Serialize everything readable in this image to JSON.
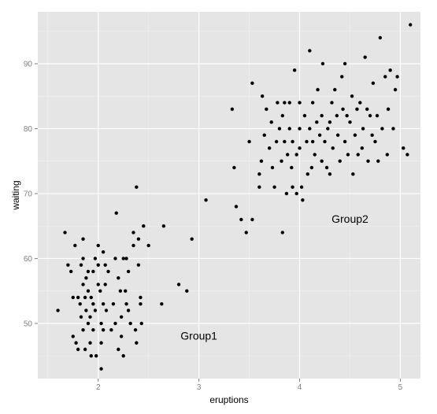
{
  "chart_data": {
    "type": "scatter",
    "xlabel": "eruptions",
    "ylabel": "waiting",
    "xlim": [
      1.4,
      5.2
    ],
    "ylim": [
      41.5,
      98
    ],
    "x_ticks": [
      2,
      3,
      4,
      5
    ],
    "y_ticks": [
      50,
      60,
      70,
      80,
      90
    ],
    "x_tick_labels": [
      "2",
      "3",
      "4",
      "5"
    ],
    "y_tick_labels": [
      "50",
      "60",
      "70",
      "80",
      "90"
    ],
    "grid": true,
    "annotations": [
      {
        "text": "Group1",
        "x": 3.0,
        "y": 47.5
      },
      {
        "text": "Group2",
        "x": 4.5,
        "y": 65.5
      }
    ],
    "colors": {
      "panel": "#e5e5e5",
      "grid_major": "#ffffff",
      "grid_minor": "#f2f2f2",
      "point": "#000000"
    },
    "points": [
      [
        1.6,
        52
      ],
      [
        1.67,
        64
      ],
      [
        1.7,
        59
      ],
      [
        1.73,
        58
      ],
      [
        1.75,
        54
      ],
      [
        1.75,
        48
      ],
      [
        1.77,
        62
      ],
      [
        1.78,
        47
      ],
      [
        1.8,
        54
      ],
      [
        1.8,
        46
      ],
      [
        1.82,
        53
      ],
      [
        1.83,
        59
      ],
      [
        1.83,
        51
      ],
      [
        1.85,
        60
      ],
      [
        1.85,
        63
      ],
      [
        1.85,
        56
      ],
      [
        1.85,
        49
      ],
      [
        1.87,
        54
      ],
      [
        1.87,
        46
      ],
      [
        1.88,
        57
      ],
      [
        1.88,
        52
      ],
      [
        1.9,
        58
      ],
      [
        1.9,
        55
      ],
      [
        1.9,
        50
      ],
      [
        1.92,
        51
      ],
      [
        1.92,
        47
      ],
      [
        1.93,
        54
      ],
      [
        1.93,
        45
      ],
      [
        1.95,
        58
      ],
      [
        1.95,
        53
      ],
      [
        1.95,
        49
      ],
      [
        1.97,
        60
      ],
      [
        1.97,
        52
      ],
      [
        1.98,
        45
      ],
      [
        2.0,
        62
      ],
      [
        2.0,
        59
      ],
      [
        2.0,
        56
      ],
      [
        2.02,
        55
      ],
      [
        2.03,
        43
      ],
      [
        2.03,
        47
      ],
      [
        2.03,
        50
      ],
      [
        2.05,
        61
      ],
      [
        2.05,
        53
      ],
      [
        2.05,
        49
      ],
      [
        2.07,
        59
      ],
      [
        2.07,
        56
      ],
      [
        2.08,
        52
      ],
      [
        2.1,
        58
      ],
      [
        2.13,
        49
      ],
      [
        2.15,
        53
      ],
      [
        2.17,
        60
      ],
      [
        2.17,
        50
      ],
      [
        2.18,
        67
      ],
      [
        2.2,
        57
      ],
      [
        2.2,
        46
      ],
      [
        2.22,
        55
      ],
      [
        2.23,
        51
      ],
      [
        2.23,
        48
      ],
      [
        2.25,
        60
      ],
      [
        2.25,
        45
      ],
      [
        2.27,
        55
      ],
      [
        2.28,
        53
      ],
      [
        2.28,
        60
      ],
      [
        2.3,
        52
      ],
      [
        2.3,
        58
      ],
      [
        2.32,
        50
      ],
      [
        2.35,
        62
      ],
      [
        2.35,
        64
      ],
      [
        2.37,
        49
      ],
      [
        2.38,
        47
      ],
      [
        2.38,
        71
      ],
      [
        2.4,
        63
      ],
      [
        2.4,
        59
      ],
      [
        2.42,
        54
      ],
      [
        2.42,
        53
      ],
      [
        2.43,
        50
      ],
      [
        2.45,
        65
      ],
      [
        2.5,
        62
      ],
      [
        2.63,
        53
      ],
      [
        2.65,
        65
      ],
      [
        2.8,
        56
      ],
      [
        2.88,
        55
      ],
      [
        2.93,
        63
      ],
      [
        3.07,
        69
      ],
      [
        3.33,
        83
      ],
      [
        3.35,
        74
      ],
      [
        3.37,
        68
      ],
      [
        3.42,
        66
      ],
      [
        3.47,
        64
      ],
      [
        3.5,
        78
      ],
      [
        3.53,
        87
      ],
      [
        3.53,
        66
      ],
      [
        3.6,
        73
      ],
      [
        3.6,
        71
      ],
      [
        3.62,
        75
      ],
      [
        3.63,
        85
      ],
      [
        3.65,
        79
      ],
      [
        3.67,
        83
      ],
      [
        3.7,
        77
      ],
      [
        3.72,
        81
      ],
      [
        3.73,
        74
      ],
      [
        3.75,
        71
      ],
      [
        3.77,
        78
      ],
      [
        3.78,
        84
      ],
      [
        3.8,
        80
      ],
      [
        3.82,
        75
      ],
      [
        3.83,
        82
      ],
      [
        3.83,
        64
      ],
      [
        3.85,
        84
      ],
      [
        3.85,
        78
      ],
      [
        3.87,
        70
      ],
      [
        3.88,
        76
      ],
      [
        3.9,
        84
      ],
      [
        3.9,
        80
      ],
      [
        3.92,
        74
      ],
      [
        3.93,
        78
      ],
      [
        3.93,
        71
      ],
      [
        3.95,
        89
      ],
      [
        3.97,
        76
      ],
      [
        3.97,
        70
      ],
      [
        4.0,
        84
      ],
      [
        4.0,
        80
      ],
      [
        4.0,
        77
      ],
      [
        4.02,
        71
      ],
      [
        4.03,
        69
      ],
      [
        4.05,
        82
      ],
      [
        4.07,
        78
      ],
      [
        4.08,
        73
      ],
      [
        4.1,
        80
      ],
      [
        4.1,
        92
      ],
      [
        4.12,
        74
      ],
      [
        4.13,
        78
      ],
      [
        4.13,
        84
      ],
      [
        4.15,
        76
      ],
      [
        4.17,
        81
      ],
      [
        4.18,
        86
      ],
      [
        4.2,
        79
      ],
      [
        4.22,
        75
      ],
      [
        4.22,
        82
      ],
      [
        4.23,
        90
      ],
      [
        4.25,
        78
      ],
      [
        4.27,
        74
      ],
      [
        4.28,
        80
      ],
      [
        4.3,
        81
      ],
      [
        4.3,
        73
      ],
      [
        4.32,
        84
      ],
      [
        4.33,
        77
      ],
      [
        4.35,
        86
      ],
      [
        4.37,
        82
      ],
      [
        4.38,
        79
      ],
      [
        4.4,
        75
      ],
      [
        4.42,
        88
      ],
      [
        4.43,
        83
      ],
      [
        4.45,
        78
      ],
      [
        4.45,
        90
      ],
      [
        4.47,
        82
      ],
      [
        4.48,
        76
      ],
      [
        4.5,
        81
      ],
      [
        4.52,
        85
      ],
      [
        4.53,
        73
      ],
      [
        4.55,
        79
      ],
      [
        4.57,
        83
      ],
      [
        4.58,
        76
      ],
      [
        4.6,
        84
      ],
      [
        4.62,
        77
      ],
      [
        4.63,
        80
      ],
      [
        4.65,
        91
      ],
      [
        4.67,
        83
      ],
      [
        4.68,
        75
      ],
      [
        4.7,
        82
      ],
      [
        4.72,
        79
      ],
      [
        4.73,
        87
      ],
      [
        4.75,
        78
      ],
      [
        4.77,
        82
      ],
      [
        4.78,
        75
      ],
      [
        4.8,
        94
      ],
      [
        4.82,
        80
      ],
      [
        4.85,
        88
      ],
      [
        4.87,
        76
      ],
      [
        4.88,
        83
      ],
      [
        4.9,
        89
      ],
      [
        4.93,
        80
      ],
      [
        4.95,
        86
      ],
      [
        4.97,
        88
      ],
      [
        5.03,
        77
      ],
      [
        5.07,
        76
      ],
      [
        5.1,
        96
      ]
    ]
  }
}
